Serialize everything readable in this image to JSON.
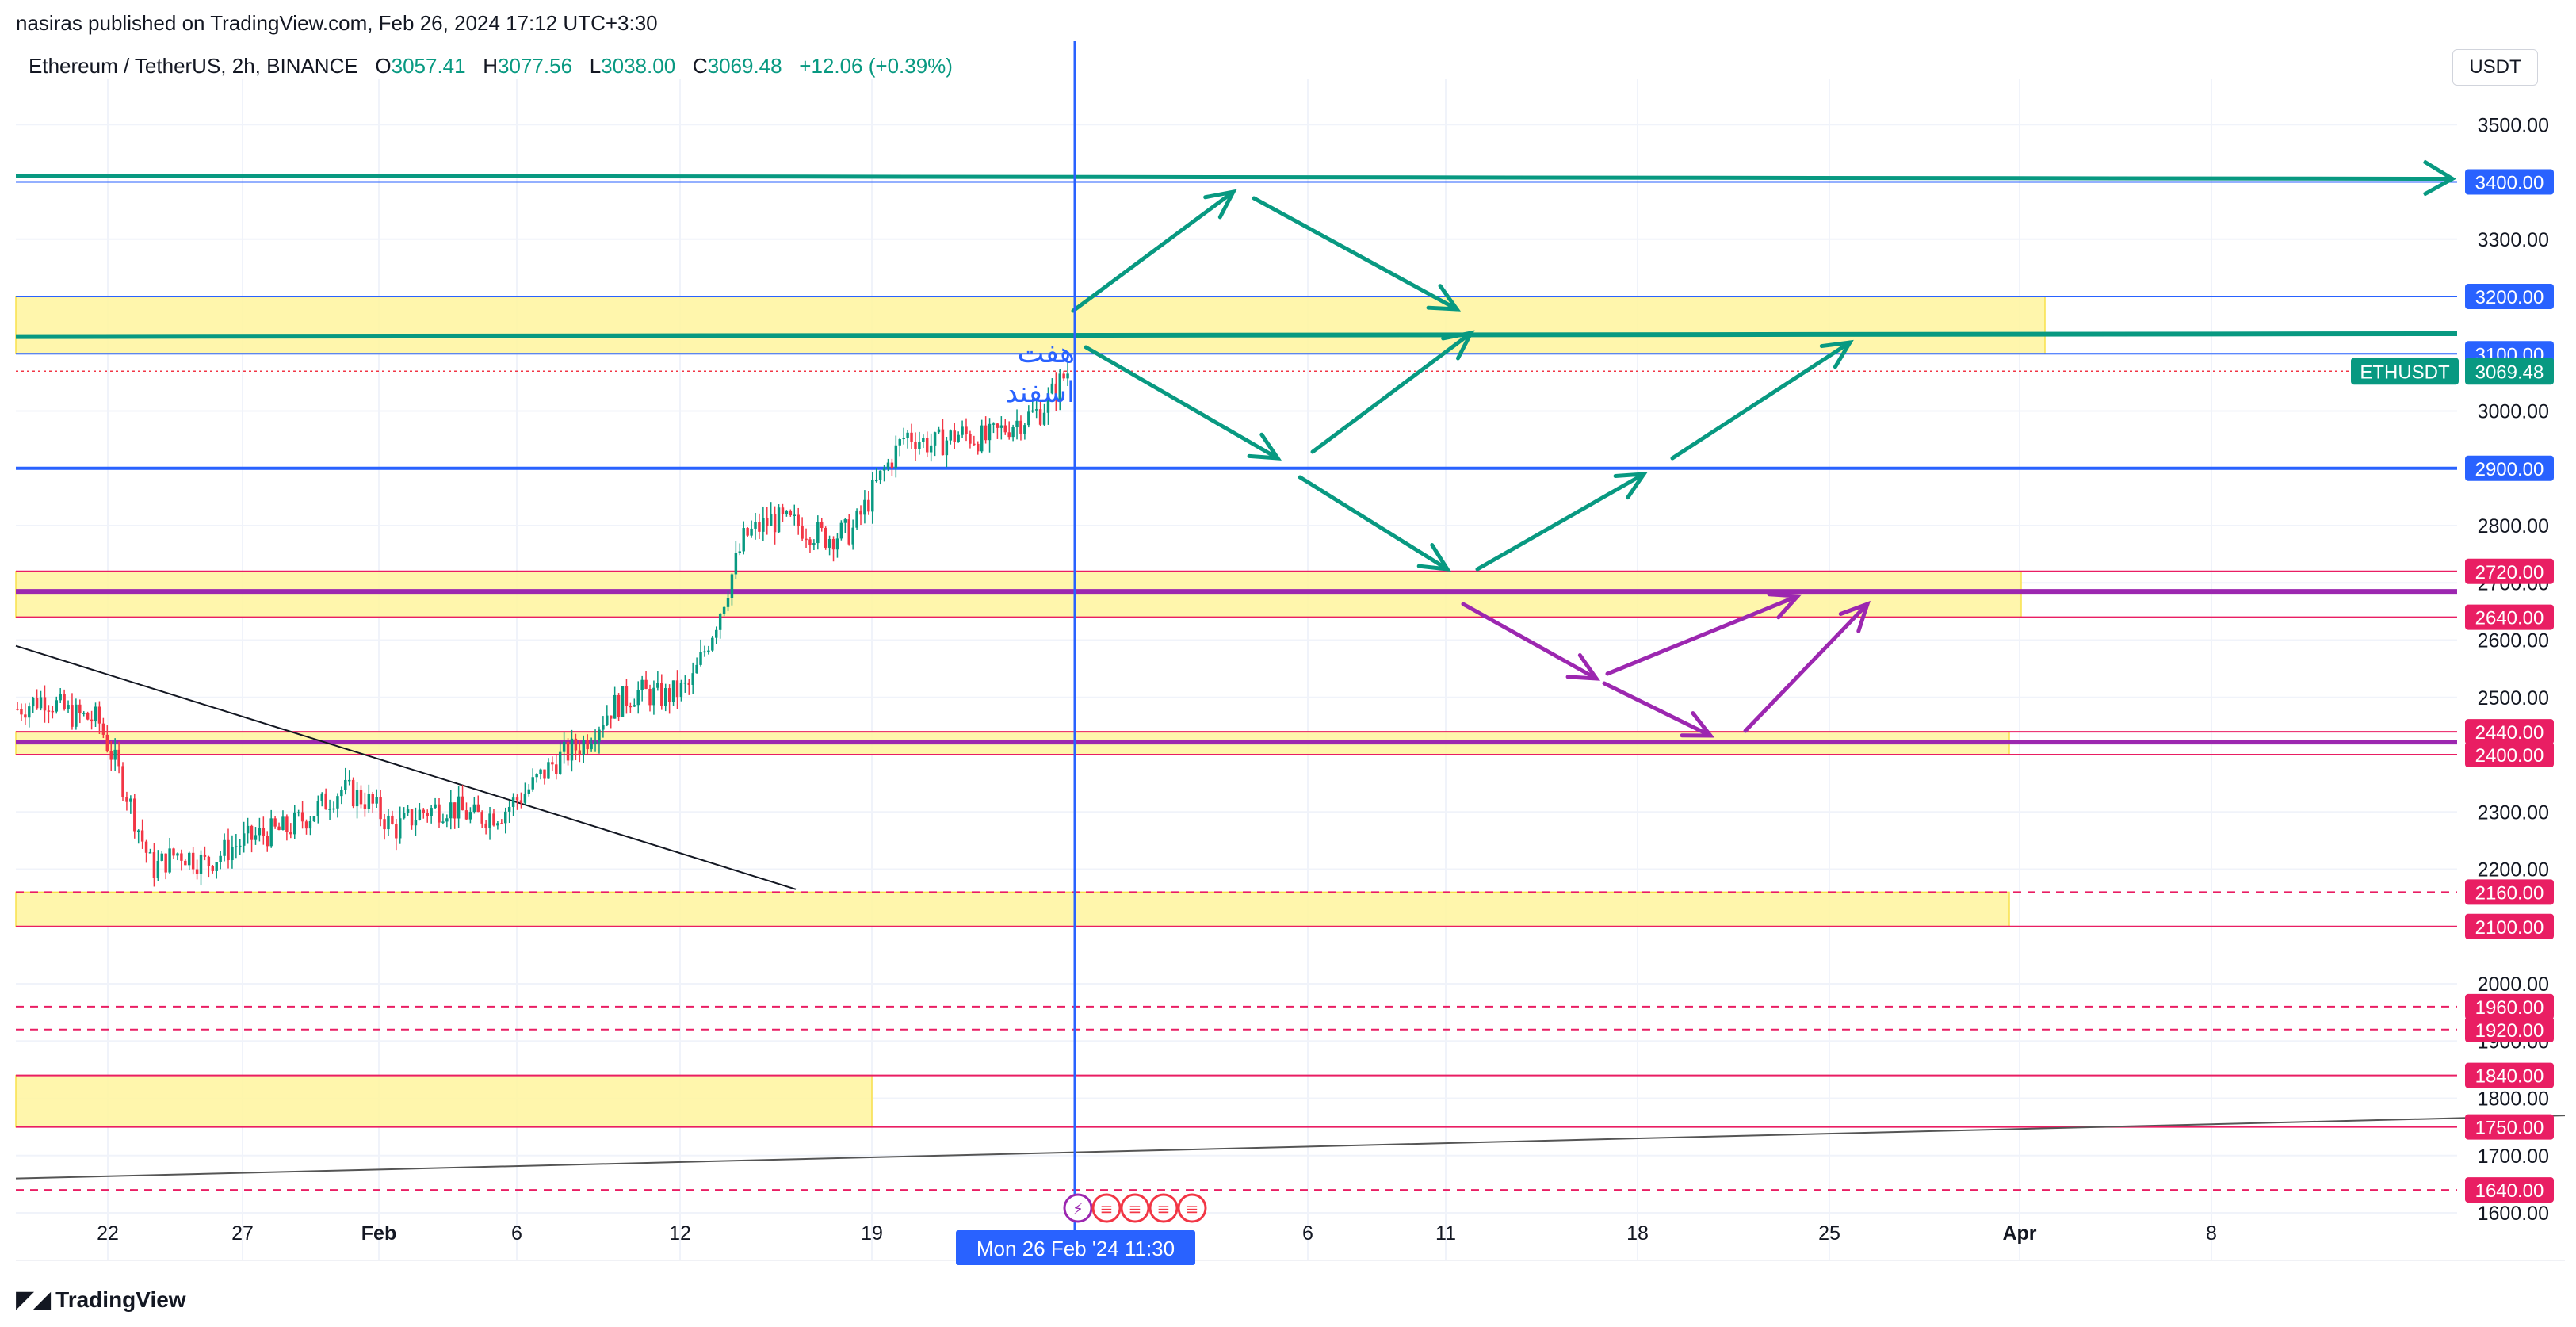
{
  "header": {
    "published": "nasiras published on TradingView.com, Feb 26, 2024 17:12 UTC+3:30",
    "symbol": "Ethereum / TetherUS, 2h, BINANCE",
    "o_label": "O",
    "o_value": "3057.41",
    "h_label": "H",
    "h_value": "3077.56",
    "l_label": "L",
    "l_value": "3038.00",
    "c_label": "C",
    "c_value": "3069.48",
    "change": "+12.06 (+0.39%)",
    "currency": "USDT"
  },
  "annotation_text": [
    "هفت",
    "اسفند"
  ],
  "footer": {
    "brand": "TradingView"
  },
  "colors": {
    "up": "#089981",
    "down": "#f23645",
    "blue": "#2962ff",
    "pink": "#e91e63",
    "purple": "#9c27b0",
    "teal_arrow": "#089981",
    "zone": "#fff59d"
  },
  "chart_data": {
    "type": "candlestick",
    "symbol": "ETHUSDT",
    "interval": "2h",
    "ylim": [
      1550,
      3620
    ],
    "y_ticks": [
      1600,
      1700,
      1800,
      1900,
      2000,
      2100,
      2200,
      2300,
      2400,
      2500,
      2600,
      2700,
      2800,
      2900,
      3000,
      3100,
      3200,
      3300,
      3400,
      3500
    ],
    "y_tick_labels": [
      "1600.00",
      "1700.00",
      "1800.00",
      "1900.00",
      "2000.00",
      "2100.00",
      "2200.00",
      "2300.00",
      "2400.00",
      "2500.00",
      "2600.00",
      "2700.00",
      "2800.00",
      "2900.00",
      "3000.00",
      "3100.00",
      "3200.00",
      "3300.00",
      "3400.00",
      "3500.00"
    ],
    "x_tick_labels": [
      "22",
      "27",
      "Feb",
      "6",
      "12",
      "19",
      "6",
      "11",
      "18",
      "25",
      "Apr",
      "8"
    ],
    "crosshair_label": "Mon 26 Feb '24   11:30",
    "last_price": {
      "label": "ETHUSDT",
      "value": "3069.48",
      "price": 3069.48
    },
    "price_levels": [
      {
        "price": 3400,
        "label": "3400.00",
        "color": "#2962ff"
      },
      {
        "price": 3200,
        "label": "3200.00",
        "color": "#2962ff"
      },
      {
        "price": 3100,
        "label": "3100.00",
        "color": "#2962ff"
      },
      {
        "price": 2900,
        "label": "2900.00",
        "color": "#2962ff"
      },
      {
        "price": 2720,
        "label": "2720.00",
        "color": "#e91e63"
      },
      {
        "price": 2640,
        "label": "2640.00",
        "color": "#e91e63"
      },
      {
        "price": 2440,
        "label": "2440.00",
        "color": "#e91e63"
      },
      {
        "price": 2400,
        "label": "2400.00",
        "color": "#e91e63"
      },
      {
        "price": 2160,
        "label": "2160.00",
        "color": "#e91e63"
      },
      {
        "price": 2100,
        "label": "2100.00",
        "color": "#e91e63"
      },
      {
        "price": 1960,
        "label": "1960.00",
        "color": "#e91e63"
      },
      {
        "price": 1920,
        "label": "1920.00",
        "color": "#e91e63"
      },
      {
        "price": 1840,
        "label": "1840.00",
        "color": "#e91e63"
      },
      {
        "price": 1750,
        "label": "1750.00",
        "color": "#e91e63"
      },
      {
        "price": 1640,
        "label": "1640.00",
        "color": "#e91e63"
      }
    ],
    "price_path": [
      {
        "date": "Jan 18",
        "price": 2480
      },
      {
        "date": "Jan 19",
        "price": 2500
      },
      {
        "date": "Jan 20",
        "price": 2470
      },
      {
        "date": "Jan 21",
        "price": 2460
      },
      {
        "date": "Jan 22",
        "price": 2340
      },
      {
        "date": "Jan 23",
        "price": 2200
      },
      {
        "date": "Jan 24",
        "price": 2230
      },
      {
        "date": "Jan 25",
        "price": 2210
      },
      {
        "date": "Jan 26",
        "price": 2240
      },
      {
        "date": "Jan 27",
        "price": 2260
      },
      {
        "date": "Jan 28",
        "price": 2270
      },
      {
        "date": "Jan 29",
        "price": 2300
      },
      {
        "date": "Jan 30",
        "price": 2340
      },
      {
        "date": "Jan 31",
        "price": 2320
      },
      {
        "date": "Feb 1",
        "price": 2270
      },
      {
        "date": "Feb 2",
        "price": 2300
      },
      {
        "date": "Feb 3",
        "price": 2310
      },
      {
        "date": "Feb 4",
        "price": 2290
      },
      {
        "date": "Feb 5",
        "price": 2300
      },
      {
        "date": "Feb 6",
        "price": 2340
      },
      {
        "date": "Feb 7",
        "price": 2390
      },
      {
        "date": "Feb 8",
        "price": 2420
      },
      {
        "date": "Feb 9",
        "price": 2480
      },
      {
        "date": "Feb 10",
        "price": 2510
      },
      {
        "date": "Feb 11",
        "price": 2500
      },
      {
        "date": "Feb 12",
        "price": 2520
      },
      {
        "date": "Feb 13",
        "price": 2640
      },
      {
        "date": "Feb 14",
        "price": 2780
      },
      {
        "date": "Feb 15",
        "price": 2810
      },
      {
        "date": "Feb 16",
        "price": 2800
      },
      {
        "date": "Feb 17",
        "price": 2780
      },
      {
        "date": "Feb 18",
        "price": 2790
      },
      {
        "date": "Feb 19",
        "price": 2880
      },
      {
        "date": "Feb 20",
        "price": 2960
      },
      {
        "date": "Feb 21",
        "price": 2940
      },
      {
        "date": "Feb 22",
        "price": 2960
      },
      {
        "date": "Feb 23",
        "price": 2950
      },
      {
        "date": "Feb 24",
        "price": 2980
      },
      {
        "date": "Feb 25",
        "price": 3000
      },
      {
        "date": "Feb 26",
        "price": 3069
      }
    ]
  }
}
